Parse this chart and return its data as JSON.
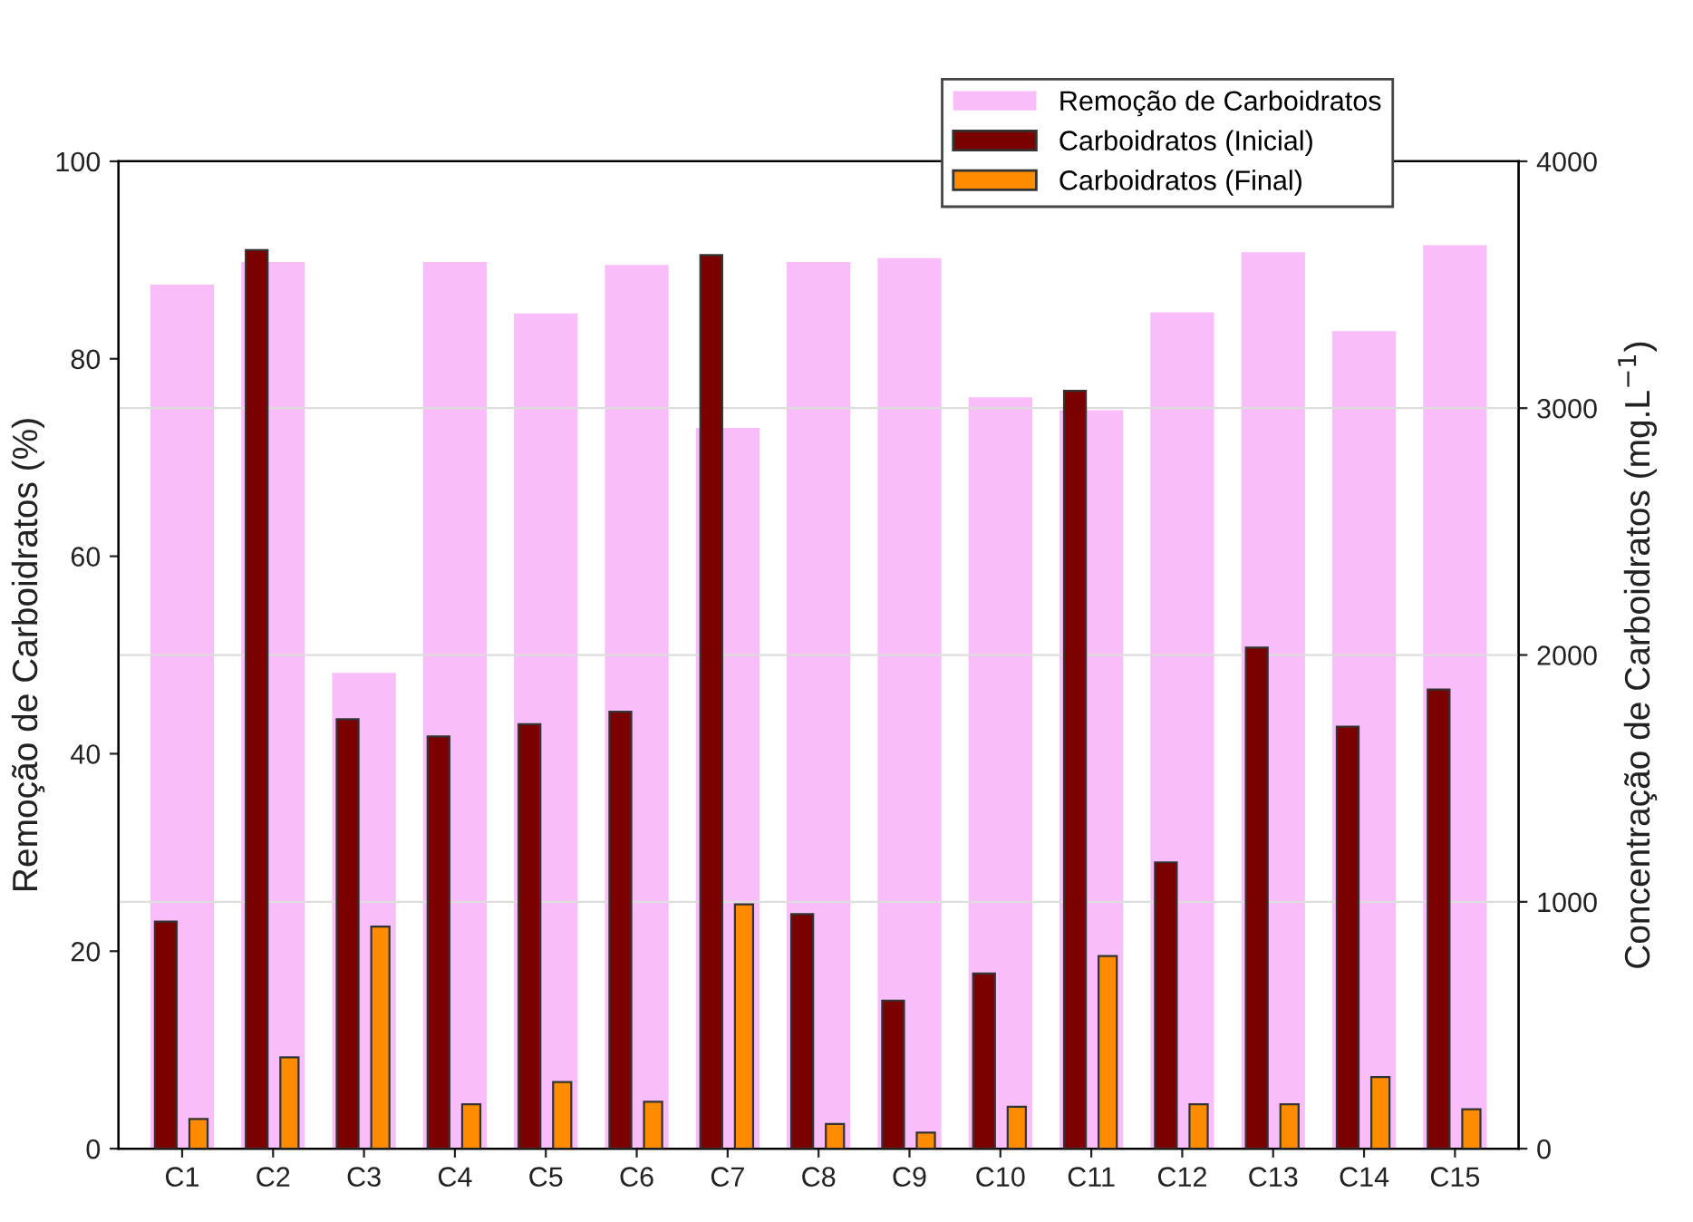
{
  "chart_data": {
    "type": "bar",
    "categories": [
      "C1",
      "C2",
      "C3",
      "C4",
      "C5",
      "C6",
      "C7",
      "C8",
      "C9",
      "C10",
      "C11",
      "C12",
      "C13",
      "C14",
      "C15"
    ],
    "ylabel": "Remoção de Carboidratos (%)",
    "y2label": "Concentração de Carboidratos (mg.L$^{−1}$)",
    "ylim": [
      0,
      100
    ],
    "yticks": [
      0,
      20,
      40,
      60,
      80,
      100
    ],
    "y2lim": [
      0,
      4000
    ],
    "y2ticks": [
      0,
      1000,
      2000,
      3000,
      4000
    ],
    "grid": "y2",
    "legend": "top right",
    "series": [
      {
        "name": "Remoção de Carboidratos",
        "color": "#f9bdf9",
        "values": [
          87.5,
          89.8,
          48.2,
          89.8,
          84.6,
          89.5,
          73.0,
          89.8,
          90.2,
          76.1,
          74.8,
          84.7,
          90.8,
          82.8,
          91.5
        ]
      },
      {
        "name": "Carboidratos (Inicial)",
        "color": "#7b0000",
        "axis": "y2",
        "values": [
          920,
          3640,
          1740,
          1670,
          1720,
          1770,
          3620,
          950,
          600,
          710,
          3070,
          1160,
          2030,
          1710,
          1860
        ]
      },
      {
        "name": "Carboidratos (Final)",
        "color": "#ff8c00",
        "axis": "y2",
        "values": [
          120,
          370,
          900,
          180,
          270,
          190,
          990,
          100,
          65,
          170,
          780,
          180,
          180,
          290,
          160
        ]
      }
    ]
  }
}
